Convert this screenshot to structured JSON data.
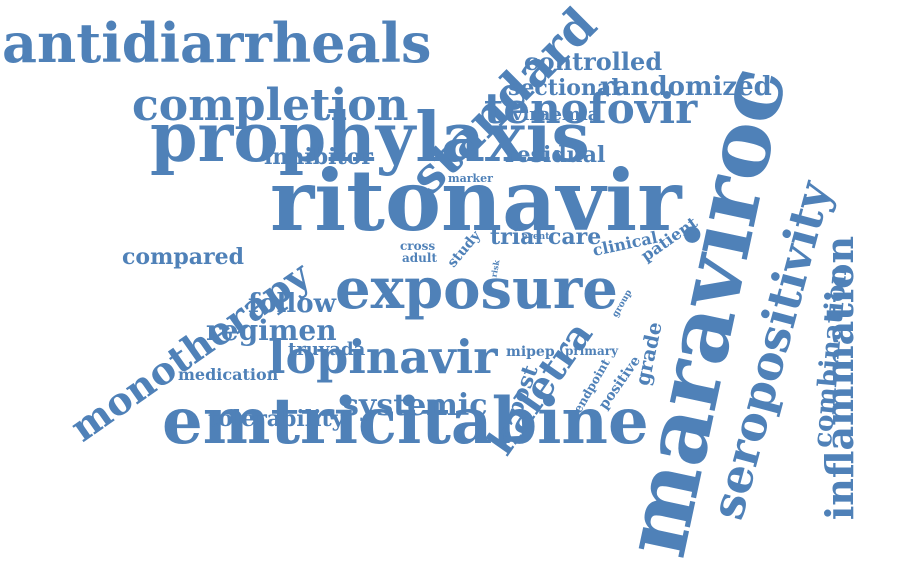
{
  "cloud": {
    "color": "#4f81b8",
    "words": [
      {
        "key": "maraviroc",
        "text": "maraviroc"
      },
      {
        "key": "ritonavir",
        "text": "ritonavir"
      },
      {
        "key": "prophylaxis",
        "text": "prophylaxis"
      },
      {
        "key": "emtricitabine",
        "text": "emtricitabine"
      },
      {
        "key": "exposure",
        "text": "exposure"
      },
      {
        "key": "antidiarrheals",
        "text": "antidiarrheals"
      },
      {
        "key": "seropositivity",
        "text": "seropositivity"
      },
      {
        "key": "inflammation",
        "text": "inflammation"
      },
      {
        "key": "completion",
        "text": "completion"
      },
      {
        "key": "standard",
        "text": "standard"
      },
      {
        "key": "tenofovir",
        "text": "tenofovir"
      },
      {
        "key": "lopinavir",
        "text": "lopinavir"
      },
      {
        "key": "monotherapy",
        "text": "monotherapy"
      },
      {
        "key": "kaletra",
        "text": "kaletra"
      },
      {
        "key": "systemic",
        "text": "systemic"
      },
      {
        "key": "randomized",
        "text": "randomized"
      },
      {
        "key": "controlled",
        "text": "controlled"
      },
      {
        "key": "sectional",
        "text": "sectional"
      },
      {
        "key": "regimen",
        "text": "regimen"
      },
      {
        "key": "follow",
        "text": "follow"
      },
      {
        "key": "compared",
        "text": "compared"
      },
      {
        "key": "combination",
        "text": "combination"
      },
      {
        "key": "inhibitor",
        "text": "inhibitor"
      },
      {
        "key": "residual",
        "text": "residual"
      },
      {
        "key": "tolerability",
        "text": "tolerability"
      },
      {
        "key": "viraemia",
        "text": "viraemia"
      },
      {
        "key": "post",
        "text": "post"
      },
      {
        "key": "trial",
        "text": "trial"
      },
      {
        "key": "care",
        "text": "care"
      },
      {
        "key": "medication",
        "text": "medication"
      },
      {
        "key": "truvada",
        "text": "truvada"
      },
      {
        "key": "grade",
        "text": "grade"
      },
      {
        "key": "clinical",
        "text": "clinical"
      },
      {
        "key": "patient",
        "text": "patient"
      },
      {
        "key": "study",
        "text": "study"
      },
      {
        "key": "mipep",
        "text": "mipep"
      },
      {
        "key": "primary",
        "text": "primary"
      },
      {
        "key": "positive",
        "text": "positive"
      },
      {
        "key": "endpoint",
        "text": "endpoint"
      },
      {
        "key": "cross",
        "text": "cross"
      },
      {
        "key": "adult",
        "text": "adult"
      },
      {
        "key": "marker",
        "text": "marker"
      },
      {
        "key": "event",
        "text": "event"
      },
      {
        "key": "group",
        "text": "group"
      },
      {
        "key": "risk",
        "text": "risk"
      }
    ]
  }
}
